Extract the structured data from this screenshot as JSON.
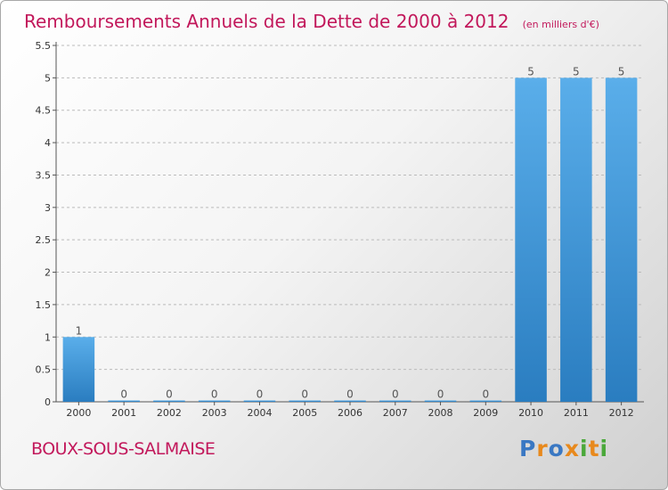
{
  "colors": {
    "bar_light": "#5aaeea",
    "bar_dark": "#2a7dc0",
    "title": "#c2185b",
    "axis": "#555555",
    "grid": "#bbbbbb"
  },
  "chart_data": {
    "type": "bar",
    "title": "Remboursements Annuels de la Dette de 2000 à 2012",
    "unit_label": "(en milliers d'€)",
    "xlabel": "",
    "ylabel": "",
    "categories": [
      "2000",
      "2001",
      "2002",
      "2003",
      "2004",
      "2005",
      "2006",
      "2007",
      "2008",
      "2009",
      "2010",
      "2011",
      "2012"
    ],
    "values": [
      1,
      0,
      0,
      0,
      0,
      0,
      0,
      0,
      0,
      0,
      5,
      5,
      5
    ],
    "data_labels": [
      "1",
      "0",
      "0",
      "0",
      "0",
      "0",
      "0",
      "0",
      "0",
      "0",
      "5",
      "5",
      "5"
    ],
    "ylim": [
      0,
      5.5
    ],
    "yticks": [
      "0",
      "0.5",
      "1",
      "1.5",
      "2",
      "2.5",
      "3",
      "3.5",
      "4",
      "4.5",
      "5",
      "5.5"
    ],
    "grid": "horizontal-dashed",
    "legend": "none"
  },
  "footer": {
    "commune": "BOUX-SOUS-SALMAISE",
    "logo_text": "Proxiti",
    "logo_letters": [
      {
        "char": "P",
        "color": "#3a78c3"
      },
      {
        "char": "r",
        "color": "#e8891c"
      },
      {
        "char": "o",
        "color": "#3a78c3"
      },
      {
        "char": "x",
        "color": "#e8891c"
      },
      {
        "char": "i",
        "color": "#4aa83a"
      },
      {
        "char": "t",
        "color": "#e8891c"
      },
      {
        "char": "i",
        "color": "#4aa83a"
      }
    ]
  }
}
